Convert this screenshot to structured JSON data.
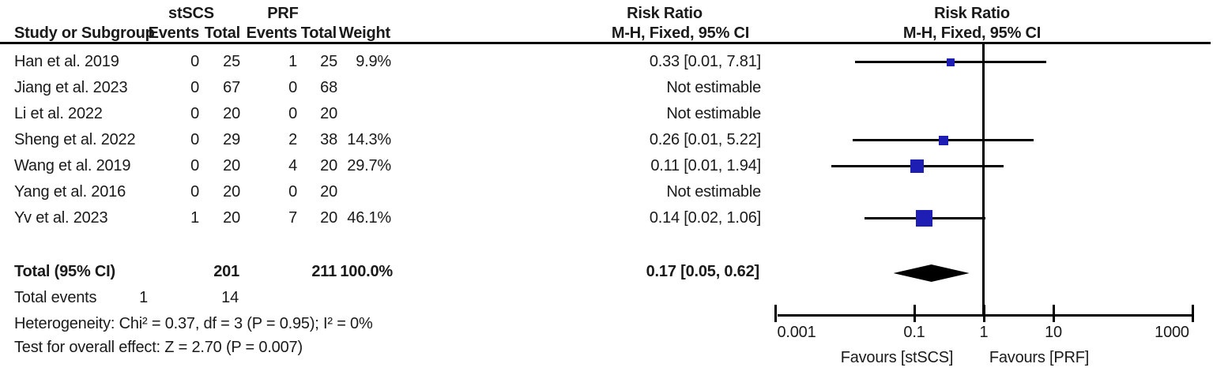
{
  "header": {
    "study_col": "Study or Subgroup",
    "group1": "stSCS",
    "group2": "PRF",
    "events_col": "Events",
    "total_col": "Total",
    "weight_col": "Weight",
    "risk_ratio_text_col": "Risk Ratio",
    "method_text_col": "M-H, Fixed, 95% CI",
    "risk_ratio_plot_col": "Risk Ratio",
    "method_plot_col": "M-H, Fixed, 95% CI"
  },
  "chart_data": {
    "type": "forest",
    "effect_measure": "Risk Ratio, M-H, Fixed, 95% CI",
    "marker_color": "#1e1eb4",
    "line_color": "#000000",
    "x_axis": {
      "scale": "log",
      "min": 0.001,
      "max": 1000,
      "tick_labels": [
        "0.001",
        "0.1",
        "1",
        "10",
        "1000"
      ],
      "tick_values": [
        0.001,
        0.1,
        1,
        10,
        1000
      ],
      "null_value": 1,
      "left_label": "Favours [stSCS]",
      "right_label": "Favours [PRF]"
    },
    "studies": [
      {
        "name": "Han et al. 2019",
        "events1": "0",
        "total1": "25",
        "events2": "1",
        "total2": "25",
        "weight": "9.9%",
        "rr_text": "0.33 [0.01, 7.81]",
        "estimable": true,
        "rr": 0.33,
        "ci_low": 0.0142,
        "ci_high": 7.81,
        "weight_pct": 9.9
      },
      {
        "name": "Jiang et al. 2023",
        "events1": "0",
        "total1": "67",
        "events2": "0",
        "total2": "68",
        "weight": "",
        "rr_text": "Not estimable",
        "estimable": false
      },
      {
        "name": "Li et al. 2022",
        "events1": "0",
        "total1": "20",
        "events2": "0",
        "total2": "20",
        "weight": "",
        "rr_text": "Not estimable",
        "estimable": false
      },
      {
        "name": "Sheng et al. 2022",
        "events1": "0",
        "total1": "29",
        "events2": "2",
        "total2": "38",
        "weight": "14.3%",
        "rr_text": "0.26 [0.01, 5.22]",
        "estimable": true,
        "rr": 0.26,
        "ci_low": 0.013,
        "ci_high": 5.22,
        "weight_pct": 14.3
      },
      {
        "name": "Wang et al. 2019",
        "events1": "0",
        "total1": "20",
        "events2": "4",
        "total2": "20",
        "weight": "29.7%",
        "rr_text": "0.11 [0.01, 1.94]",
        "estimable": true,
        "rr": 0.11,
        "ci_low": 0.0064,
        "ci_high": 1.94,
        "weight_pct": 29.7
      },
      {
        "name": "Yang et al. 2016",
        "events1": "0",
        "total1": "20",
        "events2": "0",
        "total2": "20",
        "weight": "",
        "rr_text": "Not estimable",
        "estimable": false
      },
      {
        "name": "Yv et al. 2023",
        "events1": "1",
        "total1": "20",
        "events2": "7",
        "total2": "20",
        "weight": "46.1%",
        "rr_text": "0.14 [0.02, 1.06]",
        "estimable": true,
        "rr": 0.14,
        "ci_low": 0.0193,
        "ci_high": 1.057,
        "weight_pct": 46.1
      }
    ],
    "total": {
      "label": "Total (95% CI)",
      "total1": "201",
      "total2": "211",
      "weight": "100.0%",
      "rr_text": "0.17 [0.05, 0.62]",
      "rr": 0.17,
      "ci_low": 0.05,
      "ci_high": 0.62
    },
    "total_events": {
      "label": "Total events",
      "events1": "1",
      "events2": "14"
    },
    "heterogeneity": "Heterogeneity: Chi² = 0.37, df = 3 (P = 0.95); I² = 0%",
    "overall_effect": "Test for overall effect: Z = 2.70 (P = 0.007)"
  }
}
